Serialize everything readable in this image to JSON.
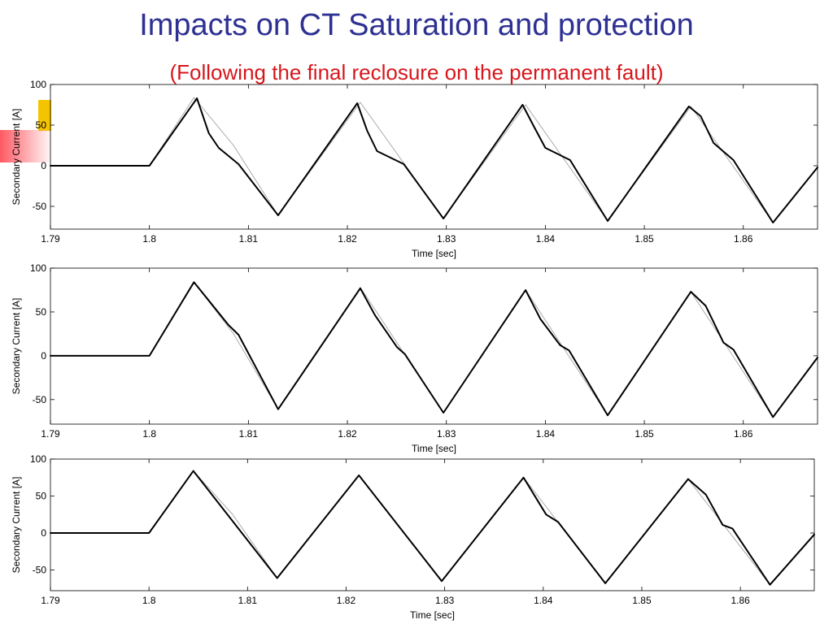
{
  "header": {
    "title": "Impacts on CT Saturation and protection",
    "subtitle": "(Following the final reclosure on the permanent fault)",
    "title_color": "#2e3192",
    "subtitle_color": "#d7161b"
  },
  "chart_data": [
    {
      "type": "line",
      "xlabel": "Time [sec]",
      "ylabel": "Secondary Current [A]",
      "xlim": [
        1.79,
        1.8675
      ],
      "ylim": [
        -78,
        100
      ],
      "xticks": [
        1.79,
        1.8,
        1.81,
        1.82,
        1.83,
        1.84,
        1.85,
        1.86
      ],
      "xtick_labels": [
        "1.79",
        "1.8",
        "1.81",
        "1.82",
        "1.83",
        "1.84",
        "1.85",
        "1.86"
      ],
      "yticks": [
        100,
        50,
        0,
        -50
      ],
      "ytick_labels": [
        "100",
        "50",
        "0",
        "-50"
      ],
      "grid": false,
      "series": [
        {
          "style": "ideal",
          "color": "#999999",
          "x": [
            1.79,
            1.8,
            1.8045,
            1.8085,
            1.813,
            1.8213,
            1.8297,
            1.838,
            1.8463,
            1.8547,
            1.863,
            1.8675
          ],
          "y": [
            0,
            0,
            84,
            25,
            -61,
            78,
            -65,
            75,
            -68,
            73,
            -70,
            -2
          ]
        },
        {
          "style": "distorted",
          "color": "#000000",
          "x": [
            1.79,
            1.8,
            1.8048,
            1.806,
            1.807,
            1.809,
            1.813,
            1.821,
            1.822,
            1.823,
            1.8257,
            1.8297,
            1.8377,
            1.8389,
            1.84,
            1.8425,
            1.8463,
            1.8545,
            1.8557,
            1.857,
            1.859,
            1.863,
            1.8675
          ],
          "y": [
            0,
            0,
            83,
            40,
            22,
            2,
            -61,
            77,
            43,
            18,
            2,
            -65,
            75,
            47,
            22,
            7,
            -68,
            73,
            61,
            28,
            7,
            -70,
            -2
          ]
        }
      ]
    },
    {
      "type": "line",
      "xlabel": "Time [sec]",
      "ylabel": "Secondary Current [A]",
      "xlim": [
        1.79,
        1.8675
      ],
      "ylim": [
        -78,
        100
      ],
      "xticks": [
        1.79,
        1.8,
        1.81,
        1.82,
        1.83,
        1.84,
        1.85,
        1.86
      ],
      "xtick_labels": [
        "1.79",
        "1.8",
        "1.81",
        "1.82",
        "1.83",
        "1.84",
        "1.85",
        "1.86"
      ],
      "yticks": [
        100,
        50,
        0,
        -50
      ],
      "ytick_labels": [
        "100",
        "50",
        "0",
        "-50"
      ],
      "grid": false,
      "series": [
        {
          "style": "ideal",
          "color": "#999999",
          "x": [
            1.79,
            1.8,
            1.8045,
            1.8085,
            1.813,
            1.8213,
            1.8297,
            1.838,
            1.8463,
            1.8547,
            1.863,
            1.8675
          ],
          "y": [
            0,
            0,
            84,
            25,
            -61,
            78,
            -65,
            75,
            -68,
            73,
            -70,
            -2
          ]
        },
        {
          "style": "distorted",
          "color": "#000000",
          "x": [
            1.79,
            1.8,
            1.8045,
            1.808,
            1.809,
            1.813,
            1.8213,
            1.8228,
            1.825,
            1.8258,
            1.8297,
            1.838,
            1.8395,
            1.8415,
            1.8424,
            1.8463,
            1.8547,
            1.8562,
            1.858,
            1.859,
            1.863,
            1.8675
          ],
          "y": [
            0,
            0,
            84,
            35,
            24,
            -61,
            77,
            46,
            10,
            2,
            -65,
            75,
            42,
            12,
            6,
            -68,
            73,
            57,
            15,
            7,
            -70,
            -2
          ]
        }
      ]
    },
    {
      "type": "line",
      "xlabel": "Time [sec]",
      "ylabel": "Secondary Current [A]",
      "xlim": [
        1.79,
        1.8675
      ],
      "ylim": [
        -78,
        100
      ],
      "xticks": [
        1.79,
        1.8,
        1.81,
        1.82,
        1.83,
        1.84,
        1.85,
        1.86
      ],
      "xtick_labels": [
        "1.79",
        "1.8",
        "1.81",
        "1.82",
        "1.83",
        "1.84",
        "1.85",
        "1.86"
      ],
      "yticks": [
        100,
        50,
        0,
        -50
      ],
      "ytick_labels": [
        "100",
        "50",
        "0",
        "-50"
      ],
      "grid": false,
      "series": [
        {
          "style": "ideal",
          "color": "#999999",
          "x": [
            1.79,
            1.8,
            1.8045,
            1.8085,
            1.813,
            1.8213,
            1.8297,
            1.838,
            1.8463,
            1.8547,
            1.863,
            1.8675
          ],
          "y": [
            0,
            0,
            84,
            25,
            -61,
            78,
            -65,
            75,
            -68,
            73,
            -70,
            -2
          ]
        },
        {
          "style": "distorted",
          "color": "#000000",
          "x": [
            1.79,
            1.8,
            1.8045,
            1.813,
            1.8213,
            1.8297,
            1.838,
            1.8403,
            1.8415,
            1.8463,
            1.8547,
            1.8565,
            1.8582,
            1.8592,
            1.863,
            1.8675
          ],
          "y": [
            0,
            0,
            84,
            -61,
            78,
            -65,
            75,
            25,
            15,
            -68,
            73,
            52,
            11,
            6,
            -70,
            -2
          ]
        }
      ]
    }
  ]
}
